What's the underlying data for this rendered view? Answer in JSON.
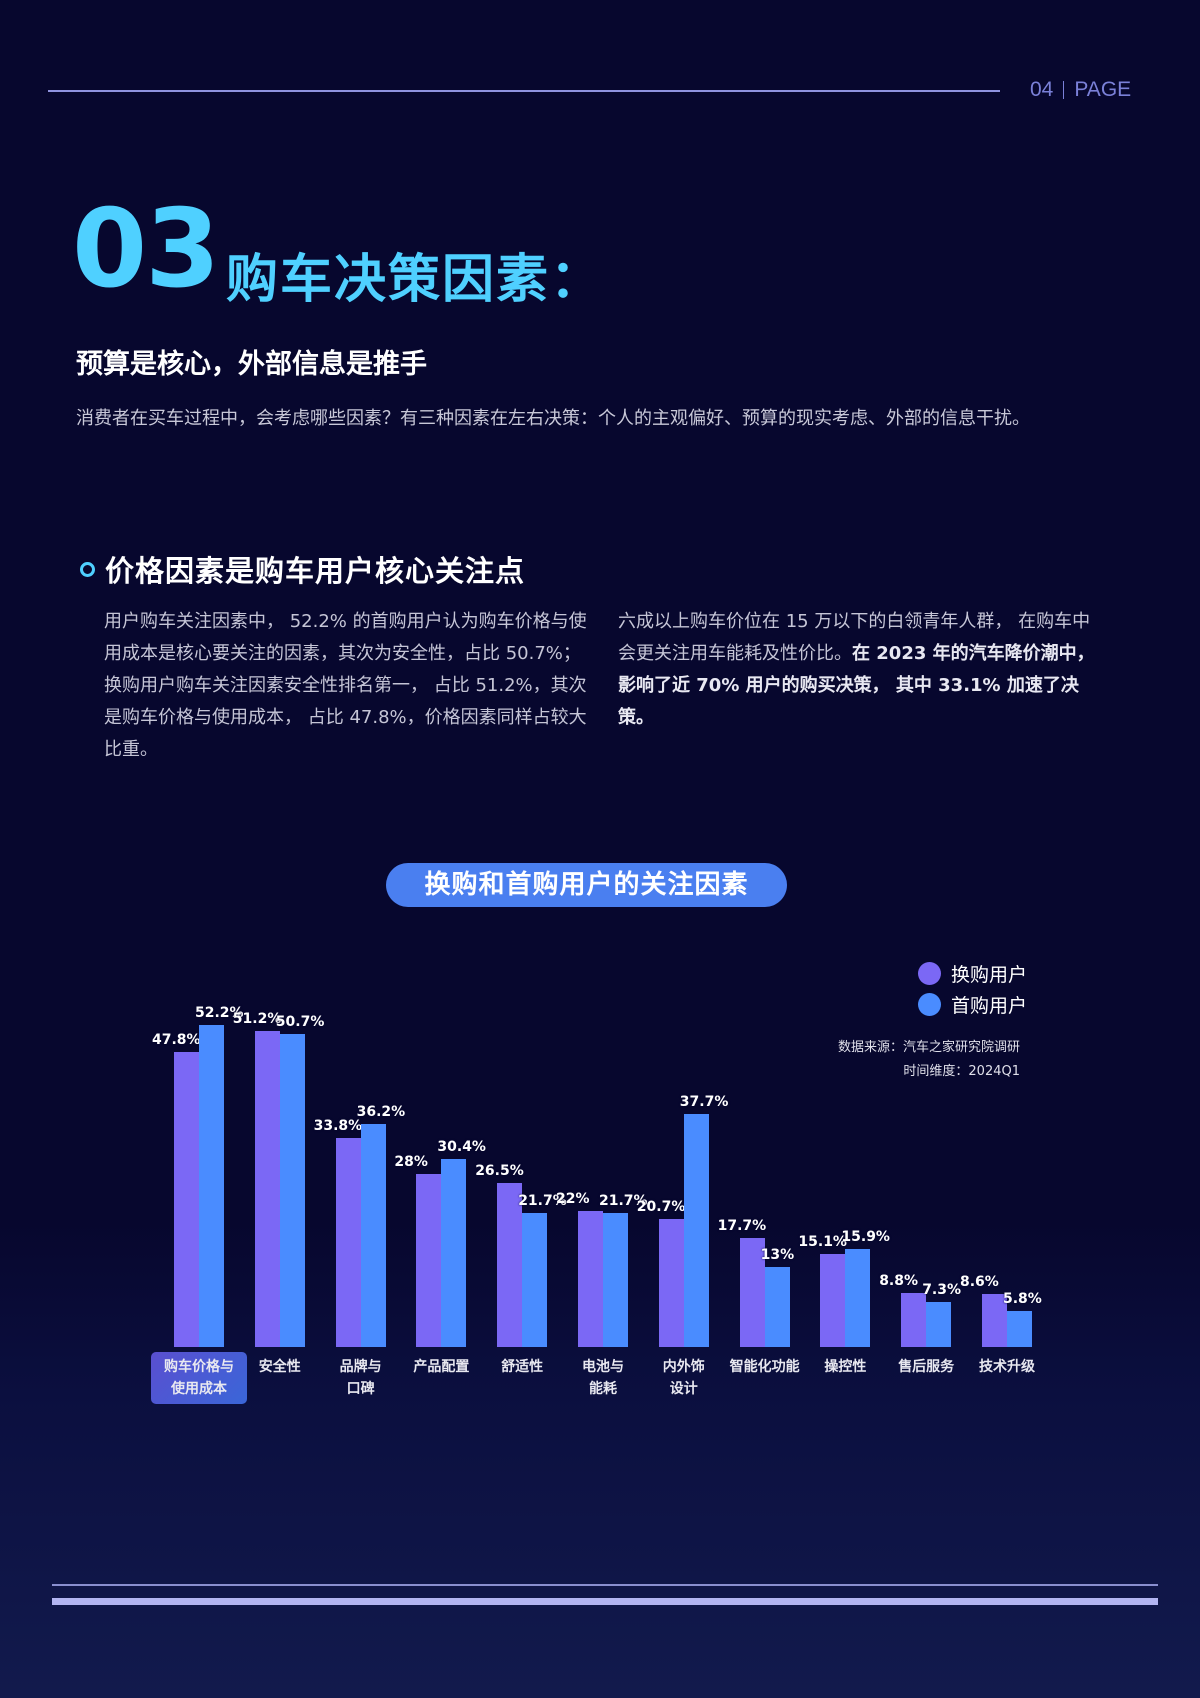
{
  "header": {
    "page_number": "04",
    "page_label": "PAGE"
  },
  "section": {
    "number": "03",
    "title": "购车决策因素：",
    "subtitle": "预算是核心，外部信息是推手",
    "intro": "消费者在买车过程中，会考虑哪些因素？有三种因素在左右决策：个人的主观偏好、预算的现实考虑、外部的信息干扰。"
  },
  "subsection": {
    "heading": "价格因素是购车用户核心关注点",
    "left_paragraph": "用户购车关注因素中， 52.2% 的首购用户认为购车价格与使用成本是核心要关注的因素，其次为安全性，占比  50.7%；  换购用户购车关注因素安全性排名第一，  占比 51.2%，其次是购车价格与使用成本，  占比 47.8%，价格因素同样占较大比重。",
    "right_paragraph_normal": "六成以上购车价位在 15 万以下的白领青年人群，  在购车中会更关注用车能耗及性价比。",
    "right_paragraph_bold": "在 2023 年的汽车降价潮中，  影响了近 70% 用户的购买决策，  其中 33.1% 加速了决策。"
  },
  "chart_meta": {
    "source": "数据来源：汽车之家研究院调研",
    "time": "时间维度：2024Q1",
    "colors": {
      "replacement": "#7b68f5",
      "first": "#4a8cff"
    }
  },
  "chart_data": {
    "type": "bar",
    "title": "换购和首购用户的关注因素",
    "xlabel": "",
    "ylabel": "",
    "ylim": [
      0,
      55
    ],
    "grid": false,
    "legend_position": "top-right",
    "categories": [
      "购车价格与使用成本",
      "安全性",
      "品牌与口碑",
      "产品配置",
      "舒适性",
      "电池与能耗",
      "内外饰设计",
      "智能化功能",
      "操控性",
      "售后服务",
      "技术升级"
    ],
    "category_lines": [
      [
        "购车价格与",
        "使用成本"
      ],
      [
        "安全性"
      ],
      [
        "品牌与",
        "口碑"
      ],
      [
        "产品配置"
      ],
      [
        "舒适性"
      ],
      [
        "电池与",
        "能耗"
      ],
      [
        "内外饰",
        "设计"
      ],
      [
        "智能化功能"
      ],
      [
        "操控性"
      ],
      [
        "售后服务"
      ],
      [
        "技术升级"
      ]
    ],
    "series": [
      {
        "name": "换购用户",
        "values": [
          47.8,
          51.2,
          33.8,
          28,
          26.5,
          22,
          20.7,
          17.7,
          15.1,
          8.8,
          8.6
        ]
      },
      {
        "name": "首购用户",
        "values": [
          52.2,
          50.7,
          36.2,
          30.4,
          21.7,
          21.7,
          37.7,
          13,
          15.9,
          7.3,
          5.8
        ]
      }
    ],
    "unit": "%"
  }
}
